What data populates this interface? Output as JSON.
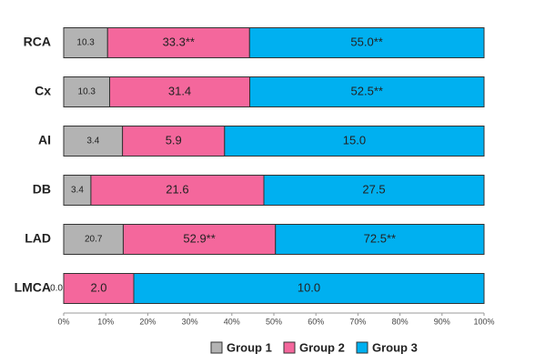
{
  "chart_data": {
    "type": "bar",
    "orientation": "horizontal",
    "stacked": "percent",
    "categories": [
      "RCA",
      "Cx",
      "AI",
      "DB",
      "LAD",
      "LMCA"
    ],
    "series": [
      {
        "name": "Group 1",
        "color": "#b3b3b3",
        "values": [
          10.3,
          10.3,
          3.4,
          3.4,
          20.7,
          0.0
        ],
        "value_labels": [
          "10.3",
          "10.3",
          "3.4",
          "3.4",
          "20.7",
          "0.0"
        ]
      },
      {
        "name": "Group 2",
        "color": "#f4679c",
        "values": [
          33.3,
          31.4,
          5.9,
          21.6,
          52.9,
          2.0
        ],
        "value_labels": [
          "33.3**",
          "31.4",
          "5.9",
          "21.6",
          "52.9**",
          "2.0"
        ]
      },
      {
        "name": "Group 3",
        "color": "#00b0f0",
        "values": [
          55.0,
          52.5,
          15.0,
          27.5,
          72.5,
          10.0
        ],
        "value_labels": [
          "55.0**",
          "52.5**",
          "15.0",
          "27.5",
          "72.5**",
          "10.0"
        ]
      }
    ],
    "xlim": [
      0,
      100
    ],
    "xticks": [
      {
        "value": 0,
        "label": "0%"
      },
      {
        "value": 10,
        "label": "10%"
      },
      {
        "value": 20,
        "label": "20%"
      },
      {
        "value": 30,
        "label": "30%"
      },
      {
        "value": 40,
        "label": "40%"
      },
      {
        "value": 50,
        "label": "50%"
      },
      {
        "value": 60,
        "label": "60%"
      },
      {
        "value": 70,
        "label": "70%"
      },
      {
        "value": 80,
        "label": "80%"
      },
      {
        "value": 90,
        "label": "90%"
      },
      {
        "value": 100,
        "label": "100%"
      }
    ],
    "legend": "bottom"
  }
}
